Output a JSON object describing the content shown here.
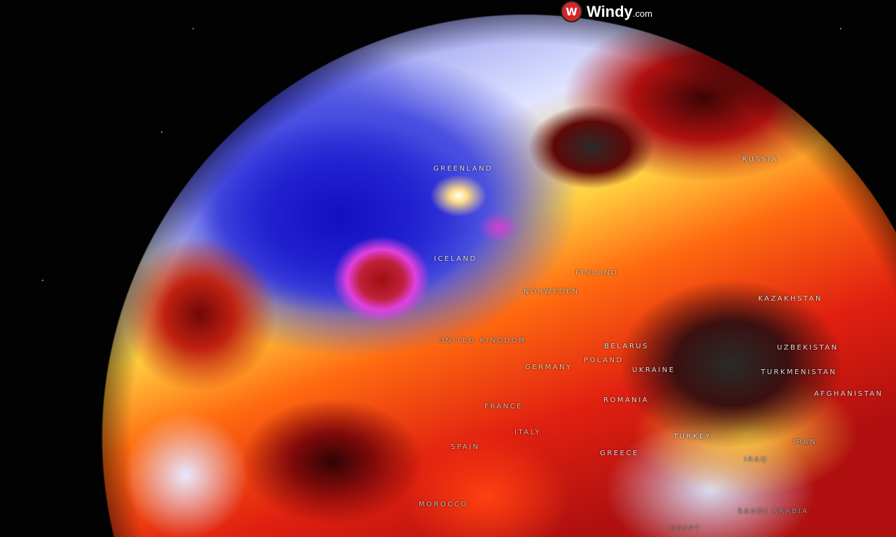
{
  "brand": {
    "name": "Windy",
    "tld": ".com",
    "icon": "windy-logo-icon",
    "color": "#d0282a"
  },
  "map": {
    "type": "globe-temperature-overlay",
    "labels": {
      "greenland": "GREENLAND",
      "russia": "RUSSIA",
      "iceland": "ICELAND",
      "finland": "FINLAND",
      "norweden": "NORWEDEN",
      "kazakhstan": "KAZAKHSTAN",
      "united_kingdom": "UNITED KINGDOM",
      "belarus": "BELARUS",
      "uzbekistan": "UZBEKISTAN",
      "poland": "POLAND",
      "germany": "GERMANY",
      "ukraine": "UKRAINE",
      "turkmenistan": "TURKMENISTAN",
      "afghanistan": "AFGHANISTAN",
      "romania": "ROMANIA",
      "france": "FRANCE",
      "italy": "ITALY",
      "turkey": "TURKEY",
      "spain": "SPAIN",
      "iran": "IRAN",
      "greece": "GREECE",
      "iraq": "IRAQ",
      "morocco": "MOROCCO",
      "saudi_arabia": "SAUDI ARABIA",
      "egypt": "EGYPT"
    }
  }
}
